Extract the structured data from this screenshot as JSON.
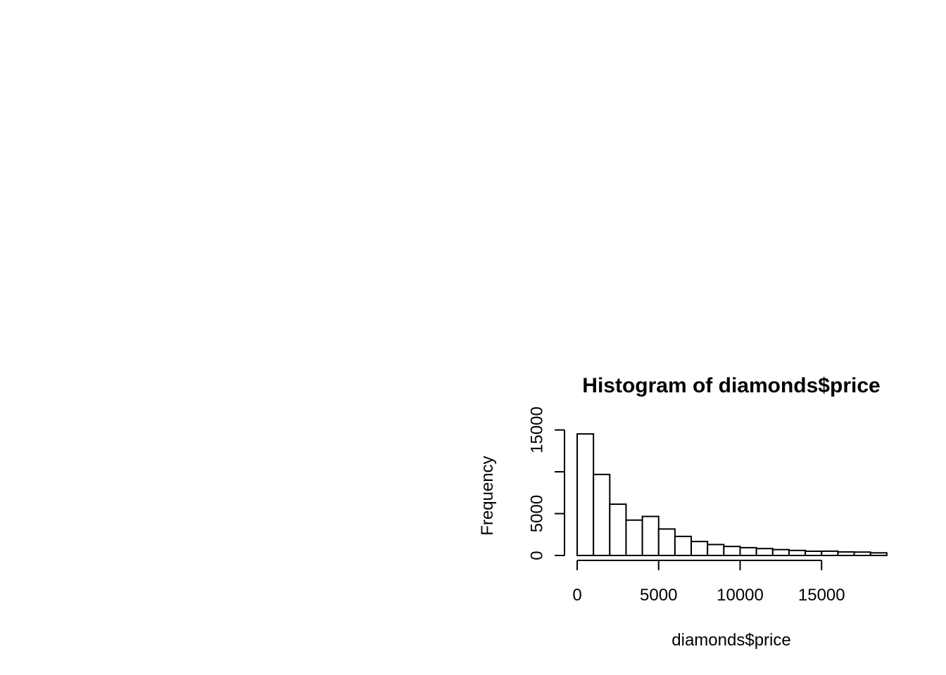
{
  "chart_data": {
    "type": "bar",
    "title": "Histogram of diamonds$price",
    "xlabel": "diamonds$price",
    "ylabel": "Frequency",
    "bin_width": 1000,
    "bins": [
      {
        "from": 0,
        "to": 1000,
        "count": 14524
      },
      {
        "from": 1000,
        "to": 2000,
        "count": 9683
      },
      {
        "from": 2000,
        "to": 3000,
        "count": 6129
      },
      {
        "from": 3000,
        "to": 4000,
        "count": 4225
      },
      {
        "from": 4000,
        "to": 5000,
        "count": 4665
      },
      {
        "from": 5000,
        "to": 6000,
        "count": 3163
      },
      {
        "from": 6000,
        "to": 7000,
        "count": 2278
      },
      {
        "from": 7000,
        "to": 8000,
        "count": 1668
      },
      {
        "from": 8000,
        "to": 9000,
        "count": 1307
      },
      {
        "from": 9000,
        "to": 10000,
        "count": 1076
      },
      {
        "from": 10000,
        "to": 11000,
        "count": 934
      },
      {
        "from": 11000,
        "to": 12000,
        "count": 825
      },
      {
        "from": 12000,
        "to": 13000,
        "count": 701
      },
      {
        "from": 13000,
        "to": 14000,
        "count": 603
      },
      {
        "from": 14000,
        "to": 15000,
        "count": 504
      },
      {
        "from": 15000,
        "to": 16000,
        "count": 513
      },
      {
        "from": 16000,
        "to": 17000,
        "count": 425
      },
      {
        "from": 17000,
        "to": 18000,
        "count": 405
      },
      {
        "from": 18000,
        "to": 19000,
        "count": 312
      }
    ],
    "x_ticks": [
      0,
      5000,
      10000,
      15000
    ],
    "y_ticks": [
      0,
      5000,
      10000,
      15000
    ],
    "y_tick_labels": [
      "0",
      "5000",
      "",
      "15000"
    ],
    "xlim": [
      0,
      19000
    ],
    "ylim": [
      0,
      15000
    ],
    "grid": false,
    "legend": "none",
    "colors": {
      "bar_fill": "#ffffff",
      "bar_stroke": "#000000",
      "axis": "#000000",
      "background": "#ffffff"
    }
  }
}
